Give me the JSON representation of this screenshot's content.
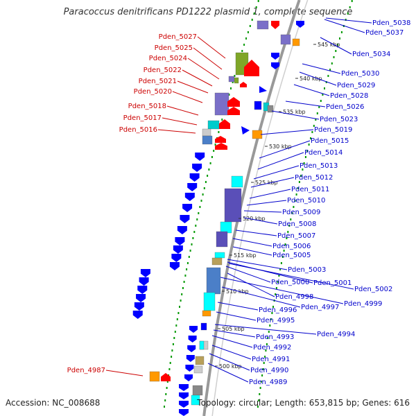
{
  "title": "Paracoccus denitrificans PD1222 plasmid 1, complete sequence",
  "footer": {
    "accession": "Accession: NC_008688",
    "summary": "Topology: circular; Length: 653,815 bp; Genes: 616"
  },
  "colors": {
    "left_label": "#cc0000",
    "right_label": "#0000cc",
    "forward_gene": "#ff0000",
    "reverse_gene": "#0000ff",
    "backbone": "#999999",
    "gc_dots": "#009900"
  },
  "scale_labels": [
    "545 kbp",
    "540 kbp",
    "535 kbp",
    "530 kbp",
    "525 kbp",
    "520 kbp",
    "515 kbp",
    "510 kbp",
    "505 kbp",
    "500 kbp"
  ],
  "left_labels": [
    "Pden_5027",
    "Pden_5025",
    "Pden_5024",
    "Pden_5022",
    "Pden_5021",
    "Pden_5020",
    "Pden_5018",
    "Pden_5017",
    "Pden_5016",
    "Pden_4987"
  ],
  "right_labels": [
    "Pden_5038",
    "Pden_5037",
    "Pden_5034",
    "Pden_5030",
    "Pden_5029",
    "Pden_5028",
    "Pden_5026",
    "Pden_5023",
    "Pden_5019",
    "Pden_5015",
    "Pden_5014",
    "Pden_5013",
    "Pden_5012",
    "Pden_5011",
    "Pden_5010",
    "Pden_5009",
    "Pden_5008",
    "Pden_5007",
    "Pden_5006",
    "Pden_5005",
    "Pden_5003",
    "Pden_5000",
    "Pden_5001",
    "Pden_5002",
    "Pden_4998",
    "Pden_4999",
    "Pden_4997",
    "Pden_4996",
    "Pden_4995",
    "Pden_4994",
    "Pden_4993",
    "Pden_4992",
    "Pden_4991",
    "Pden_4990",
    "Pden_4989"
  ]
}
